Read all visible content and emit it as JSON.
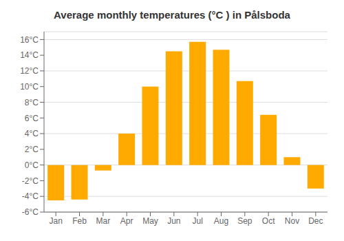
{
  "chart_data": {
    "type": "bar",
    "title": "Average monthly temperatures (°C ) in Pålsboda",
    "categories": [
      "Jan",
      "Feb",
      "Mar",
      "Apr",
      "May",
      "Jun",
      "Jul",
      "Aug",
      "Sep",
      "Oct",
      "Nov",
      "Dec"
    ],
    "values": [
      -4.5,
      -4.4,
      -0.7,
      4.0,
      10.0,
      14.5,
      15.7,
      14.7,
      10.7,
      6.4,
      1.0,
      -3.0
    ],
    "color": "#FFAA00",
    "ylim": [
      -6,
      17
    ],
    "yticks": [
      {
        "value": -6,
        "label": "-6°C"
      },
      {
        "value": -4,
        "label": "-4°C"
      },
      {
        "value": -2,
        "label": "-2°C"
      },
      {
        "value": 0,
        "label": "0°C"
      },
      {
        "value": 2,
        "label": "2°C"
      },
      {
        "value": 4,
        "label": "4°C"
      },
      {
        "value": 6,
        "label": "6°C"
      },
      {
        "value": 8,
        "label": "8°C"
      },
      {
        "value": 10,
        "label": "10°C"
      },
      {
        "value": 12,
        "label": "12°C"
      },
      {
        "value": 14,
        "label": "14°C"
      },
      {
        "value": 16,
        "label": "16°C"
      }
    ],
    "grid": true
  }
}
